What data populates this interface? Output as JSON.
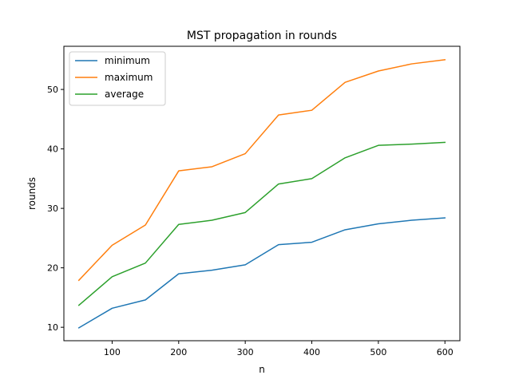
{
  "chart_data": {
    "type": "line",
    "title": "MST propagation in rounds",
    "xlabel": "n",
    "ylabel": "rounds",
    "xlim": [
      27.5,
      622.5
    ],
    "ylim": [
      7.74,
      57.26
    ],
    "xticks": [
      100,
      200,
      300,
      400,
      500,
      600
    ],
    "yticks": [
      10,
      20,
      30,
      40,
      50
    ],
    "grid": false,
    "legend_position": "top-left",
    "x": [
      50,
      100,
      150,
      200,
      250,
      300,
      350,
      400,
      450,
      500,
      550,
      600
    ],
    "series": [
      {
        "name": "minimum",
        "color": "#1f77b4",
        "values": [
          9.9,
          13.2,
          14.6,
          19.0,
          19.6,
          20.5,
          23.9,
          24.3,
          26.4,
          27.4,
          28.0,
          28.4
        ]
      },
      {
        "name": "maximum",
        "color": "#ff7f0e",
        "values": [
          17.9,
          23.8,
          27.2,
          36.3,
          37.0,
          39.2,
          45.7,
          46.5,
          51.2,
          53.1,
          54.3,
          55.0
        ]
      },
      {
        "name": "average",
        "color": "#2ca02c",
        "values": [
          13.7,
          18.5,
          20.8,
          27.3,
          28.0,
          29.3,
          34.1,
          35.0,
          38.5,
          40.6,
          40.8,
          41.1
        ]
      }
    ]
  }
}
